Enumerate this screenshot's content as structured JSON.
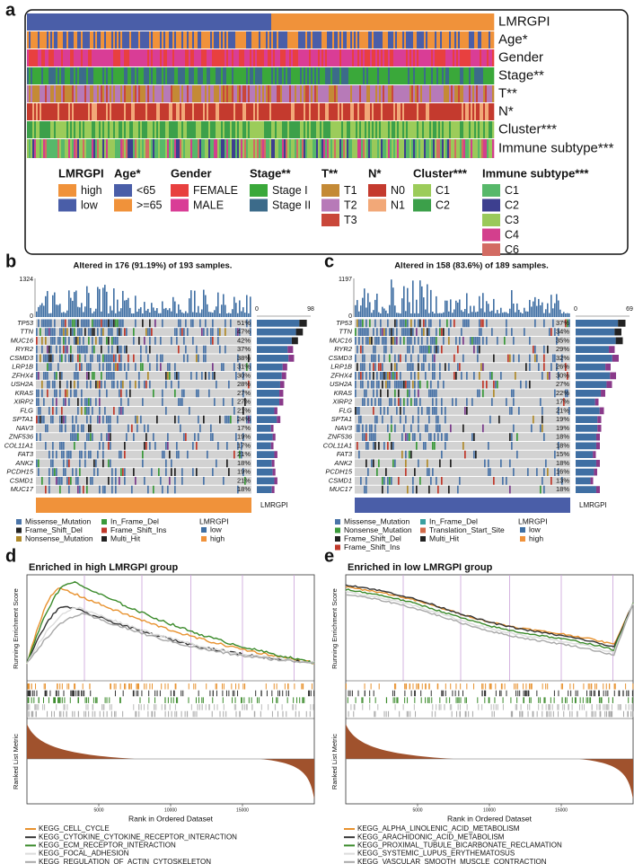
{
  "panel_a": {
    "label": "a",
    "tracks": [
      "LMRGPI",
      "Age*",
      "Gender",
      "Stage**",
      "T**",
      "N*",
      "Cluster***",
      "Immune subtype***"
    ],
    "legend": [
      {
        "title": "LMRGPI",
        "items": [
          "high",
          "low"
        ]
      },
      {
        "title": "Age*",
        "items": [
          "<65",
          ">=65"
        ]
      },
      {
        "title": "Gender",
        "items": [
          "FEMALE",
          "MALE"
        ]
      },
      {
        "title": "Stage**",
        "items": [
          "Stage I",
          "Stage II"
        ]
      },
      {
        "title": "T**",
        "items": [
          "T1",
          "T2",
          "T3"
        ]
      },
      {
        "title": "N*",
        "items": [
          "N0",
          "N1"
        ]
      },
      {
        "title": "Cluster***",
        "items": [
          "C1",
          "C2"
        ]
      },
      {
        "title": "Immune subtype***",
        "items": [
          "C1",
          "C2",
          "C3",
          "C4",
          "C6"
        ]
      }
    ]
  },
  "panel_b": {
    "label": "b",
    "title": "Altered in 176 (91.19%) of 193 samples.",
    "top_ticks": [
      1324,
      0
    ],
    "side_ticks": [
      0,
      98
    ],
    "annotation": "LMRGPI",
    "genes": [
      {
        "gene": "TP53",
        "pct": "51%"
      },
      {
        "gene": "TTN",
        "pct": "47%"
      },
      {
        "gene": "MUC16",
        "pct": "42%"
      },
      {
        "gene": "RYR2",
        "pct": "37%"
      },
      {
        "gene": "CSMD3",
        "pct": "38%"
      },
      {
        "gene": "LRP1B",
        "pct": "31%"
      },
      {
        "gene": "ZFHX4",
        "pct": "30%"
      },
      {
        "gene": "USH2A",
        "pct": "28%"
      },
      {
        "gene": "KRAS",
        "pct": "27%"
      },
      {
        "gene": "XIRP2",
        "pct": "27%"
      },
      {
        "gene": "FLG",
        "pct": "21%"
      },
      {
        "gene": "SPTA1",
        "pct": "24%"
      },
      {
        "gene": "NAV3",
        "pct": "17%"
      },
      {
        "gene": "ZNF536",
        "pct": "19%"
      },
      {
        "gene": "COL11A1",
        "pct": "17%"
      },
      {
        "gene": "FAT3",
        "pct": "21%"
      },
      {
        "gene": "ANK2",
        "pct": "18%"
      },
      {
        "gene": "PCDH15",
        "pct": "19%"
      },
      {
        "gene": "CSMD1",
        "pct": "21%"
      },
      {
        "gene": "MUC17",
        "pct": "18%"
      }
    ],
    "legend_columns": [
      [
        "Missense_Mutation",
        "Frame_Shift_Del",
        "Nonsense_Mutation"
      ],
      [
        "In_Frame_Del",
        "Frame_Shift_Ins",
        "Multi_Hit"
      ]
    ],
    "group_legend": {
      "title": "LMRGPI",
      "items": [
        "low",
        "high"
      ]
    }
  },
  "panel_c": {
    "label": "c",
    "title": "Altered in 158 (83.6%) of 189 samples.",
    "top_ticks": [
      1197,
      0
    ],
    "side_ticks": [
      0,
      69
    ],
    "annotation": "LMRGPI",
    "genes": [
      {
        "gene": "TP53",
        "pct": "37%"
      },
      {
        "gene": "TTN",
        "pct": "34%"
      },
      {
        "gene": "MUC16",
        "pct": "35%"
      },
      {
        "gene": "RYR2",
        "pct": "29%"
      },
      {
        "gene": "CSMD3",
        "pct": "32%"
      },
      {
        "gene": "LRP1B",
        "pct": "26%"
      },
      {
        "gene": "ZFHX4",
        "pct": "30%"
      },
      {
        "gene": "USH2A",
        "pct": "27%"
      },
      {
        "gene": "KRAS",
        "pct": "22%"
      },
      {
        "gene": "XIRP2",
        "pct": "17%"
      },
      {
        "gene": "FLG",
        "pct": "21%"
      },
      {
        "gene": "SPTA1",
        "pct": "19%"
      },
      {
        "gene": "NAV3",
        "pct": "19%"
      },
      {
        "gene": "ZNF536",
        "pct": "18%"
      },
      {
        "gene": "COL11A1",
        "pct": "18%"
      },
      {
        "gene": "FAT3",
        "pct": "15%"
      },
      {
        "gene": "ANK2",
        "pct": "18%"
      },
      {
        "gene": "PCDH15",
        "pct": "16%"
      },
      {
        "gene": "CSMD1",
        "pct": "13%"
      },
      {
        "gene": "MUC17",
        "pct": "18%"
      }
    ],
    "legend_columns": [
      [
        "Missense_Mutation",
        "Nonsense_Mutation",
        "Frame_Shift_Del",
        "Frame_Shift_Ins"
      ],
      [
        "In_Frame_Del",
        "Translation_Start_Site",
        "Multi_Hit"
      ]
    ],
    "group_legend": {
      "title": "LMRGPI",
      "items": [
        "low",
        "high"
      ]
    }
  },
  "panel_d": {
    "label": "d",
    "title": "Enriched in high LMRGPI group",
    "y_label_top": "Running Enrichment Score",
    "y_label_bottom": "Ranked List Metric",
    "x_label": "Rank in Ordered Dataset",
    "x_ticks": [
      5000,
      10000,
      15000
    ],
    "sets": [
      "KEGG_CELL_CYCLE",
      "KEGG_CYTOKINE_CYTOKINE_RECEPTOR_INTERACTION",
      "KEGG_ECM_RECEPTOR_INTERACTION",
      "KEGG_FOCAL_ADHESION",
      "KEGG_REGULATION_OF_ACTIN_CYTOSKELETON"
    ]
  },
  "panel_e": {
    "label": "e",
    "title": "Enriched in low LMRGPI group",
    "y_label_top": "Running Enrichment Score",
    "y_label_bottom": "Ranked List Metric",
    "x_label": "Rank in Ordered Dataset",
    "x_ticks": [
      5000,
      10000,
      15000
    ],
    "sets": [
      "KEGG_ALPHA_LINOLENIC_ACID_METABOLISM",
      "KEGG_ARACHIDONIC_ACID_METABOLISM",
      "KEGG_PROXIMAL_TUBULE_BICARBONATE_RECLAMATION",
      "KEGG_SYSTEMIC_LUPUS_ERYTHEMATOSUS",
      "KEGG_VASCULAR_SMOOTH_MUSCLE_CONTRACTION"
    ]
  }
}
